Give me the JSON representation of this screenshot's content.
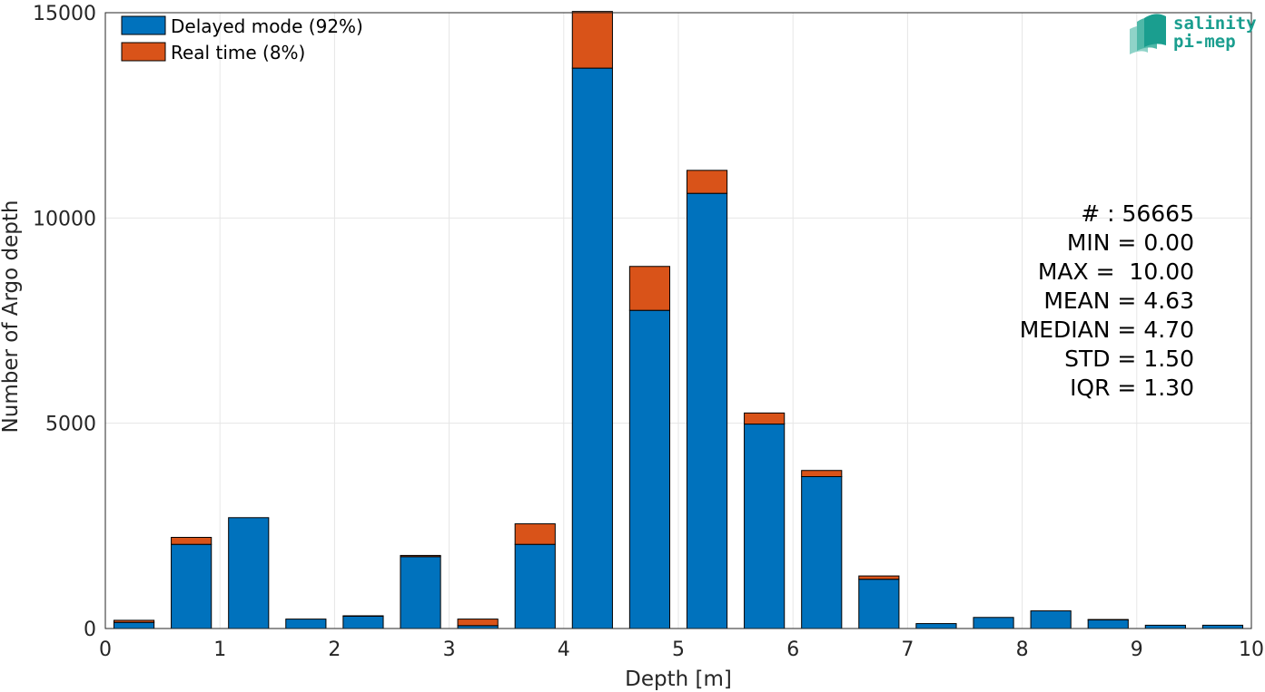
{
  "chart_data": {
    "type": "bar",
    "stacked": true,
    "xlabel": "Depth [m]",
    "ylabel": "Number of Argo depth",
    "xlim": [
      0,
      10
    ],
    "ylim": [
      0,
      15000
    ],
    "xticks": [
      "0",
      "1",
      "2",
      "3",
      "4",
      "5",
      "6",
      "7",
      "8",
      "9",
      "10"
    ],
    "yticks": [
      "0",
      "5000",
      "10000",
      "15000"
    ],
    "grid": true,
    "legend_position": "top-left",
    "bin_width": 0.5,
    "x": [
      0.25,
      0.75,
      1.25,
      1.75,
      2.25,
      2.75,
      3.25,
      3.75,
      4.25,
      4.75,
      5.25,
      5.75,
      6.25,
      6.75,
      7.25,
      7.75,
      8.25,
      8.75,
      9.25,
      9.75
    ],
    "series": [
      {
        "name": "Delayed mode (92%)",
        "color": "#0072BD",
        "values": [
          150,
          2050,
          2700,
          230,
          300,
          1750,
          70,
          2050,
          13650,
          7750,
          10600,
          4980,
          3700,
          1200,
          120,
          270,
          430,
          210,
          80,
          80
        ]
      },
      {
        "name": "Real time (8%)",
        "color": "#D95319",
        "values": [
          50,
          170,
          0,
          0,
          10,
          30,
          160,
          500,
          1380,
          1070,
          560,
          270,
          150,
          80,
          0,
          0,
          0,
          10,
          0,
          0
        ]
      }
    ],
    "stats": {
      "count": "# : 56665",
      "min": "MIN = 0.00",
      "max": "MAX =  10.00",
      "mean": "MEAN = 4.63",
      "median": "MEDIAN = 4.70",
      "std": "STD = 1.50",
      "iqr": "IQR = 1.30"
    },
    "logo": {
      "line1": "salinity",
      "line2": "pi-mep",
      "color": "#1a9e8f"
    }
  }
}
